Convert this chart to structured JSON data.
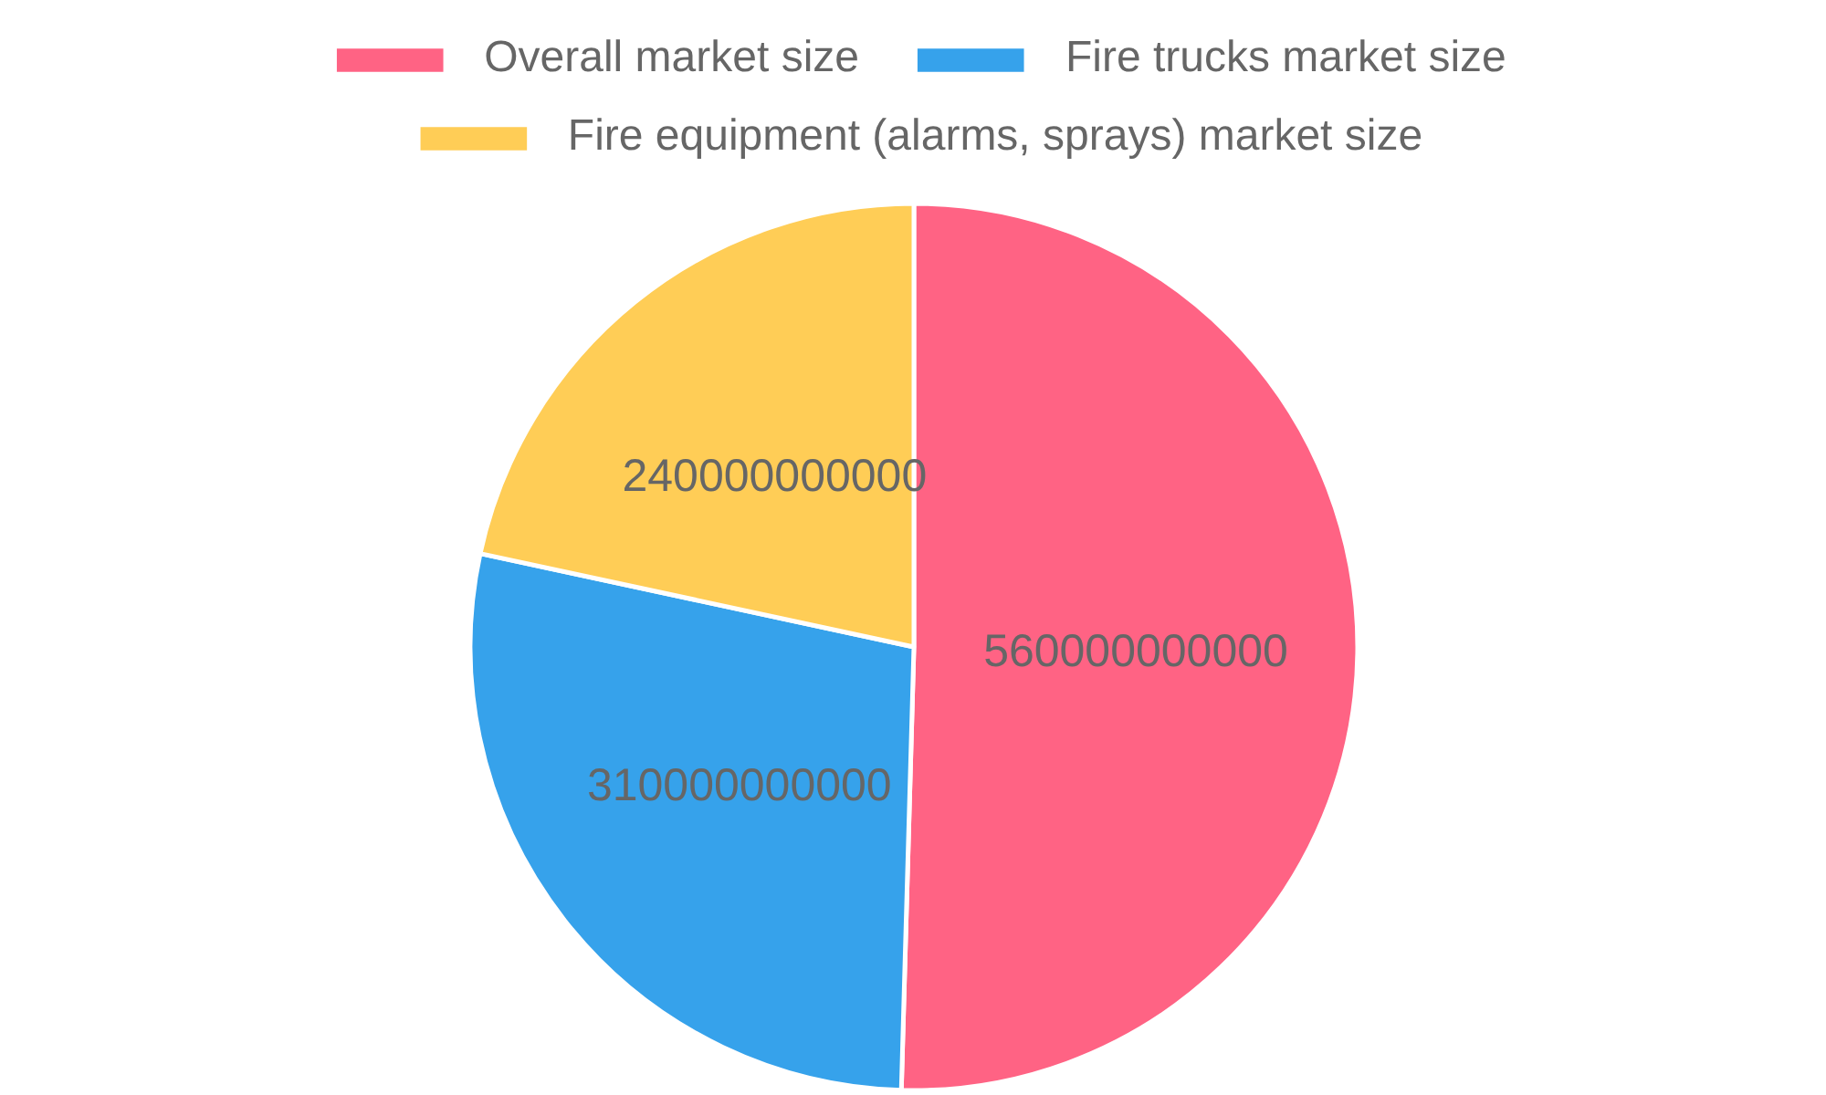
{
  "chart_data": {
    "type": "pie",
    "categories": [
      "Overall market size",
      "Fire trucks market size",
      "Fire equipment (alarms, sprays) market size"
    ],
    "values": [
      560000000000,
      310000000000,
      240000000000
    ],
    "colors": [
      "#ff6384",
      "#36a2eb",
      "#ffcd56"
    ],
    "legend": "top",
    "data_labels": true
  }
}
